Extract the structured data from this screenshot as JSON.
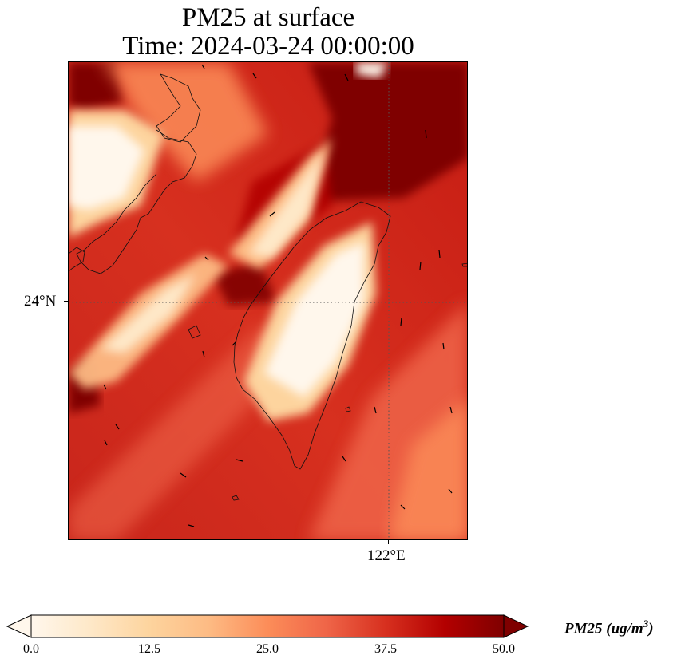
{
  "title": {
    "line1": "PM25 at surface",
    "line2": "Time: 2024-03-24 00:00:00"
  },
  "axes": {
    "lat_label": "24°N",
    "lon_label": "122°E"
  },
  "colorbar": {
    "label": "PM25 (ug/m",
    "label_sup": "3",
    "label_close": ")",
    "ticks": [
      "0.0",
      "12.5",
      "25.0",
      "37.5",
      "50.0"
    ],
    "min": 0,
    "max": 50,
    "extend": "both",
    "colormap": "OrRd",
    "colors": [
      "#fff7ec",
      "#fee8c8",
      "#fdd49e",
      "#fdbb84",
      "#fc8d59",
      "#ef6548",
      "#d7301f",
      "#b30000",
      "#7f0000"
    ]
  },
  "map": {
    "gridlines": "dotted",
    "features": [
      "coastline",
      "wind-vectors"
    ]
  }
}
